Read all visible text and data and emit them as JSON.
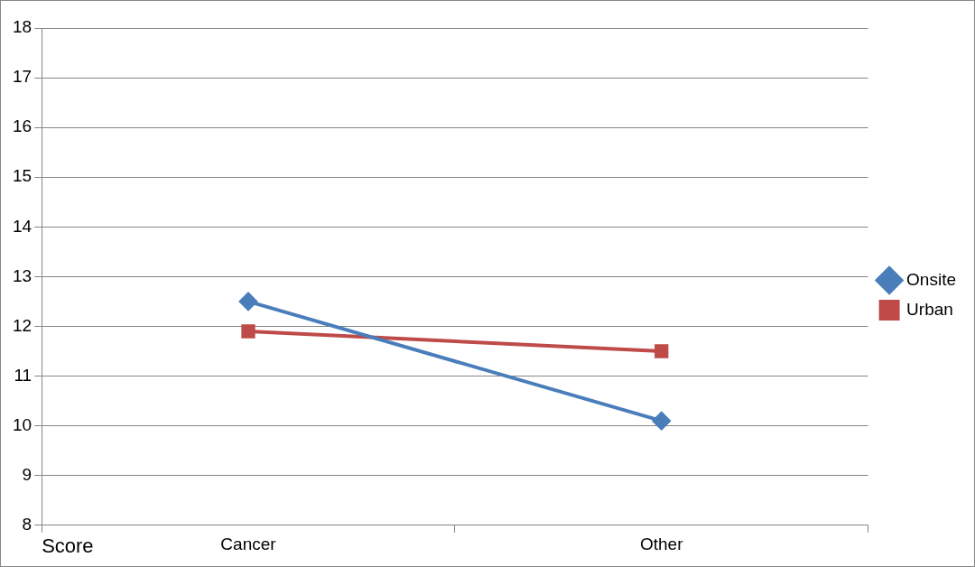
{
  "chart_data": {
    "type": "line",
    "xlabel": "Score",
    "categories": [
      "Cancer",
      "Other"
    ],
    "series": [
      {
        "name": "Onsite",
        "color": "#4a7ebb",
        "marker": "diamond",
        "values": [
          12.5,
          10.1
        ]
      },
      {
        "name": "Urban",
        "color": "#be4b48",
        "marker": "square",
        "values": [
          11.9,
          11.5
        ]
      }
    ],
    "ylim": [
      8,
      18
    ],
    "yticks": [
      8,
      9,
      10,
      11,
      12,
      13,
      14,
      15,
      16,
      17,
      18
    ],
    "grid": "y",
    "legend": "right",
    "line_style": "solid"
  }
}
